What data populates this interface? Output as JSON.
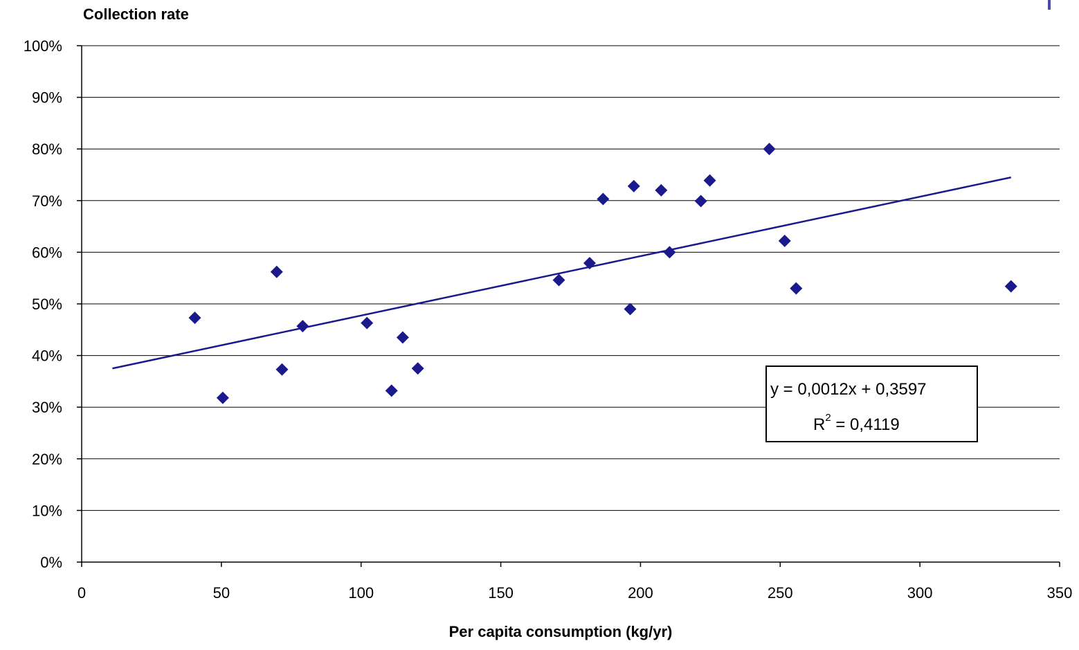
{
  "chart_data": {
    "type": "scatter",
    "ylabel": "Collection rate",
    "xlabel": "Per capita consumption (kg/yr)",
    "xlim": [
      0,
      350
    ],
    "ylim": [
      0,
      1
    ],
    "x_ticks": [
      0,
      50,
      100,
      150,
      200,
      250,
      300,
      350
    ],
    "x_tick_labels": [
      "0",
      "50",
      "100",
      "150",
      "200",
      "250",
      "300",
      "350"
    ],
    "y_ticks": [
      0,
      0.1,
      0.2,
      0.3,
      0.4,
      0.5,
      0.6,
      0.7,
      0.8,
      0.9,
      1.0
    ],
    "y_tick_labels": [
      "0%",
      "10%",
      "20%",
      "30%",
      "40%",
      "50%",
      "60%",
      "70%",
      "80%",
      "90%",
      "100%"
    ],
    "grid": "horizontal",
    "marker_color": "#1a1a8c",
    "trendline_color": "#1a1a8c",
    "points": [
      {
        "x": 40.5,
        "y": 0.473
      },
      {
        "x": 50.5,
        "y": 0.318
      },
      {
        "x": 69.8,
        "y": 0.562
      },
      {
        "x": 71.7,
        "y": 0.373
      },
      {
        "x": 79.1,
        "y": 0.457
      },
      {
        "x": 102.1,
        "y": 0.463
      },
      {
        "x": 110.9,
        "y": 0.332
      },
      {
        "x": 114.9,
        "y": 0.435
      },
      {
        "x": 120.3,
        "y": 0.375
      },
      {
        "x": 170.8,
        "y": 0.546
      },
      {
        "x": 181.8,
        "y": 0.579
      },
      {
        "x": 186.6,
        "y": 0.703
      },
      {
        "x": 196.3,
        "y": 0.49
      },
      {
        "x": 197.6,
        "y": 0.728
      },
      {
        "x": 207.4,
        "y": 0.72
      },
      {
        "x": 210.4,
        "y": 0.6
      },
      {
        "x": 221.6,
        "y": 0.699
      },
      {
        "x": 224.8,
        "y": 0.739
      },
      {
        "x": 246.1,
        "y": 0.8
      },
      {
        "x": 251.6,
        "y": 0.622
      },
      {
        "x": 255.7,
        "y": 0.53
      },
      {
        "x": 332.6,
        "y": 0.534
      }
    ],
    "trendline": {
      "x_start": 11,
      "x_end": 332.6,
      "y_start": 0.375,
      "y_end": 0.745
    },
    "equation_lines": [
      "y = 0,0012x + 0,3597",
      "R",
      "2",
      " = 0,4119"
    ]
  }
}
